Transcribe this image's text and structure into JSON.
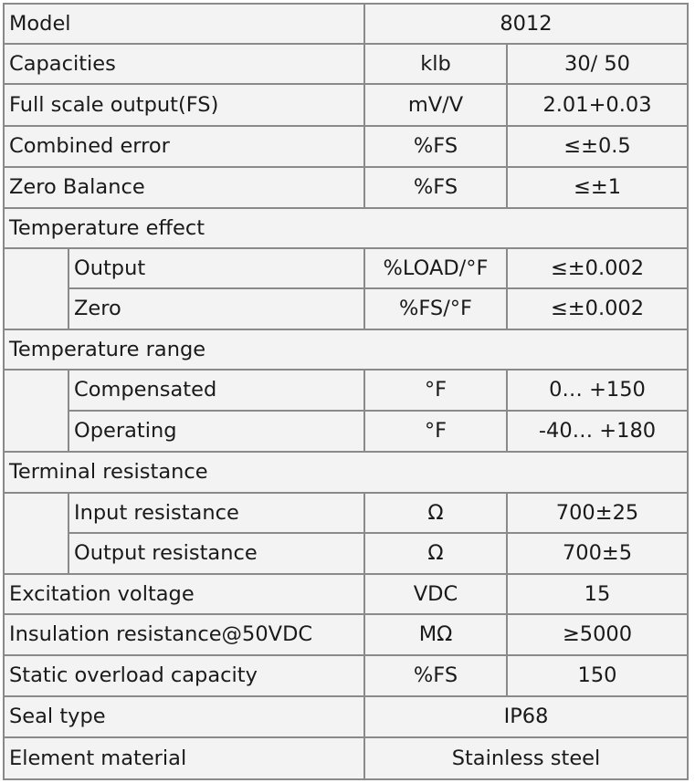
{
  "spec_table": {
    "model": {
      "label": "Model",
      "value": "8012"
    },
    "capacities": {
      "label": "Capacities",
      "unit": "klb",
      "value": "30/ 50"
    },
    "full_scale_output": {
      "label": "Full scale output(FS)",
      "unit": "mV/V",
      "value": "2.01+0.03"
    },
    "combined_error": {
      "label": "Combined error",
      "unit": "%FS",
      "value": "≤±0.5"
    },
    "zero_balance": {
      "label": "Zero Balance",
      "unit": "%FS",
      "value": "≤±1"
    },
    "temperature_effect": {
      "label": "Temperature effect",
      "output": {
        "label": "Output",
        "unit": "%LOAD/°F",
        "value": "≤±0.002"
      },
      "zero": {
        "label": "Zero",
        "unit": "%FS/°F",
        "value": "≤±0.002"
      }
    },
    "temperature_range": {
      "label": "Temperature range",
      "compensated": {
        "label": "Compensated",
        "unit": "°F",
        "value": "0… +150"
      },
      "operating": {
        "label": "Operating",
        "unit": "°F",
        "value": "-40… +180"
      }
    },
    "terminal_resistance": {
      "label": "Terminal resistance",
      "input": {
        "label": "Input resistance",
        "unit": "Ω",
        "value": "700±25"
      },
      "output": {
        "label": "Output resistance",
        "unit": "Ω",
        "value": "700±5"
      }
    },
    "excitation_voltage": {
      "label": "Excitation voltage",
      "unit": "VDC",
      "value": "15"
    },
    "insulation_resistance": {
      "label": "Insulation resistance@50VDC",
      "unit": "MΩ",
      "value": "≥5000"
    },
    "static_overload": {
      "label": "Static overload capacity",
      "unit": "%FS",
      "value": "150"
    },
    "seal_type": {
      "label": "Seal type",
      "value": "IP68"
    },
    "element_material": {
      "label": "Element material",
      "value": "Stainless steel"
    }
  }
}
